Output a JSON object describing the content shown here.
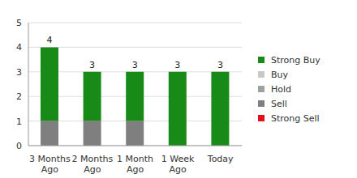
{
  "chart_data": {
    "type": "bar",
    "stacked": true,
    "categories": [
      "3 Months Ago",
      "2 Months Ago",
      "1 Month Ago",
      "1 Week Ago",
      "Today"
    ],
    "series": [
      {
        "name": "Strong Buy",
        "color": "#178a17",
        "values": [
          3,
          2,
          2,
          3,
          3
        ]
      },
      {
        "name": "Buy",
        "color": "#c8c8c8",
        "values": [
          0,
          0,
          0,
          0,
          0
        ]
      },
      {
        "name": "Hold",
        "color": "#a0a0a0",
        "values": [
          0,
          0,
          0,
          0,
          0
        ]
      },
      {
        "name": "Sell",
        "color": "#7f7f7f",
        "values": [
          1,
          1,
          1,
          0,
          0
        ]
      },
      {
        "name": "Strong Sell",
        "color": "#e0101c",
        "values": [
          0,
          0,
          0,
          0,
          0
        ]
      }
    ],
    "totals": [
      4,
      3,
      3,
      3,
      3
    ],
    "ylim": [
      0,
      5
    ],
    "yticks": [
      0,
      1,
      2,
      3,
      4,
      5
    ],
    "grid": true,
    "legend": "right"
  }
}
